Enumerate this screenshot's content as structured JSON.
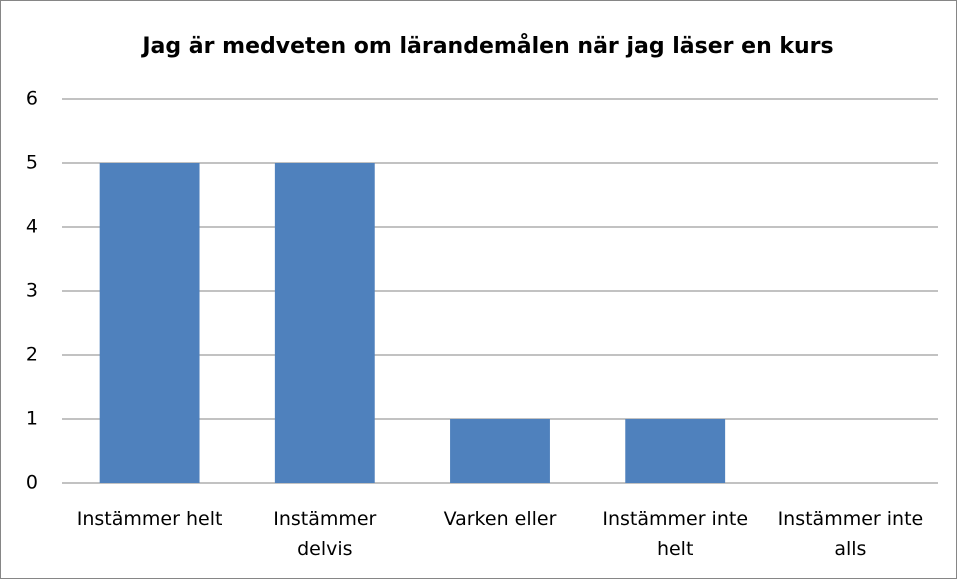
{
  "chart_data": {
    "type": "bar",
    "title": "Jag är medveten om lärandemålen när jag läser en kurs",
    "categories": [
      "Instämmer helt",
      "Instämmer delvis",
      "Varken eller",
      "Instämmer inte helt",
      "Instämmer inte alls"
    ],
    "values": [
      5,
      5,
      1,
      1,
      0
    ],
    "color": "#4f81bd",
    "ylim": [
      0,
      6
    ],
    "yticks": [
      0,
      1,
      2,
      3,
      4,
      5,
      6
    ],
    "grid": true
  }
}
